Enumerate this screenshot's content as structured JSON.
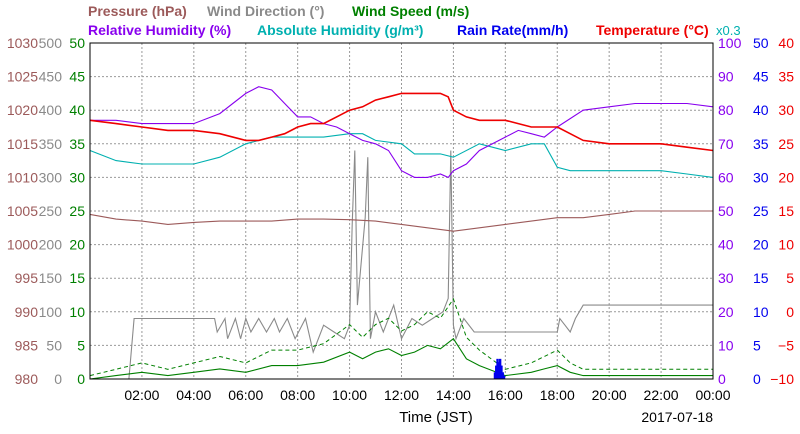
{
  "chart_data": {
    "type": "line",
    "date_label": "2017-07-18",
    "xlabel": "Time (JST)",
    "x_ticks": [
      "02:00",
      "04:00",
      "06:00",
      "08:00",
      "10:00",
      "12:00",
      "14:00",
      "16:00",
      "18:00",
      "20:00",
      "22:00",
      "00:00"
    ],
    "xlim": [
      0,
      24
    ],
    "grid": true,
    "legend": {
      "row1": [
        {
          "name": "Pressure (hPa)",
          "color": "#9c5a5a"
        },
        {
          "name": "Wind Direction (°)",
          "color": "#8a8a8a"
        },
        {
          "name": "Wind Speed (m/s)",
          "color": "#008000"
        }
      ],
      "row2": [
        {
          "name": "Relative Humidity (%)",
          "color": "#8800ee"
        },
        {
          "name": "Absolute Humidity (g/m³)",
          "color": "#00b0b0"
        },
        {
          "name": "Rain Rate(mm/h)",
          "color": "#0000ee"
        },
        {
          "name": "Temperature (°C)",
          "color": "#ee0000"
        }
      ],
      "note": "x0.3",
      "note_color": "#00b0b0"
    },
    "axes": {
      "pressure": {
        "color": "#9c5a5a",
        "ticks": [
          "1030",
          "1025",
          "1020",
          "1015",
          "1010",
          "1005",
          "1000",
          "995",
          "990",
          "985",
          "980"
        ]
      },
      "wind_direction": {
        "color": "#8a8a8a",
        "ticks": [
          "500",
          "450",
          "400",
          "350",
          "300",
          "250",
          "200",
          "150",
          "100",
          "50",
          "0"
        ]
      },
      "wind_speed": {
        "color": "#008000",
        "ticks": [
          "50",
          "45",
          "40",
          "35",
          "30",
          "25",
          "20",
          "15",
          "10",
          "5",
          "0"
        ]
      },
      "relative_humidity": {
        "color": "#8800ee",
        "ticks": [
          "100",
          "90",
          "80",
          "70",
          "60",
          "50",
          "40",
          "30",
          "20",
          "10",
          "0"
        ]
      },
      "rain_rate": {
        "color": "#0000ee",
        "ticks": [
          "50",
          "45",
          "40",
          "35",
          "30",
          "25",
          "20",
          "15",
          "10",
          "5",
          "0"
        ]
      },
      "temperature": {
        "color": "#ee0000",
        "ticks": [
          "40",
          "35",
          "30",
          "25",
          "20",
          "15",
          "10",
          "5",
          "0",
          "−5",
          "−10"
        ]
      }
    },
    "series": [
      {
        "name": "Temperature (°C)",
        "color": "#ee0000",
        "scale": "temperature",
        "ylim": [
          -10,
          40
        ],
        "x": [
          0,
          1,
          2,
          3,
          4,
          5,
          6,
          6.5,
          7,
          7.5,
          8,
          8.5,
          9,
          9.5,
          10,
          10.5,
          11,
          11.5,
          12,
          12.5,
          13,
          13.5,
          13.8,
          14,
          14.5,
          15,
          16,
          16.5,
          17,
          18,
          18.5,
          19,
          20,
          21,
          22,
          23,
          24
        ],
        "values": [
          28.5,
          28,
          27.5,
          27,
          27,
          26.5,
          25.5,
          25.5,
          26,
          26.5,
          27.5,
          28,
          28,
          29,
          30,
          30.5,
          31.5,
          32,
          32.5,
          32.5,
          32.5,
          32.5,
          32,
          30,
          29,
          28.5,
          28.5,
          28,
          27.5,
          27.5,
          26.5,
          25.5,
          25,
          25,
          25,
          24.5,
          24
        ]
      },
      {
        "name": "Relative Humidity (%)",
        "color": "#8800ee",
        "scale": "relative_humidity",
        "ylim": [
          0,
          100
        ],
        "x": [
          0,
          1,
          2,
          3,
          4,
          5,
          6,
          6.5,
          7,
          7.5,
          8,
          8.5,
          9,
          9.5,
          10,
          10.5,
          11,
          11.5,
          12,
          12.5,
          13,
          13.5,
          13.8,
          14,
          14.5,
          15,
          16,
          16.5,
          17,
          17.5,
          18,
          19,
          20,
          21,
          22,
          23,
          24
        ],
        "values": [
          77,
          77,
          76,
          76,
          76,
          79,
          85,
          87,
          86,
          82,
          78,
          78,
          76,
          75,
          73,
          71,
          70,
          68,
          62,
          60,
          60,
          61,
          60,
          62,
          64,
          68,
          72,
          74,
          73,
          72,
          75,
          80,
          81,
          82,
          82,
          82,
          81
        ]
      },
      {
        "name": "Absolute Humidity (g/m³)",
        "color": "#00b0b0",
        "scale": "relative_humidity",
        "ylim": [
          0,
          100
        ],
        "x": [
          0,
          1,
          2,
          3,
          4,
          5,
          6,
          7,
          8,
          9,
          10,
          10.5,
          11,
          12,
          12.5,
          13,
          13.5,
          14,
          15,
          15.5,
          16,
          17,
          17.5,
          18,
          18.5,
          19,
          20,
          21,
          22,
          23,
          24
        ],
        "values": [
          68,
          65,
          64,
          64,
          64,
          66,
          70,
          72,
          72,
          72,
          73,
          73,
          71,
          70,
          67,
          67,
          67,
          66,
          70,
          69,
          68,
          70,
          70,
          63,
          62,
          62,
          62,
          62,
          62,
          61,
          60
        ]
      },
      {
        "name": "Pressure (hPa)",
        "color": "#9c5a5a",
        "scale": "pressure",
        "ylim": [
          980,
          1030
        ],
        "x": [
          0,
          1,
          2,
          3,
          4,
          5,
          6,
          7,
          8,
          9,
          10,
          11,
          12,
          13,
          14,
          15,
          16,
          17,
          18,
          19,
          20,
          21,
          22,
          23,
          24
        ],
        "values": [
          1004.5,
          1003.8,
          1003.5,
          1003,
          1003.3,
          1003.5,
          1003.5,
          1003.5,
          1003.8,
          1003.8,
          1003.7,
          1003.5,
          1003,
          1002.5,
          1002,
          1002.5,
          1003,
          1003.5,
          1004,
          1004,
          1004.5,
          1005,
          1005,
          1005,
          1005
        ]
      },
      {
        "name": "Wind Direction (°)",
        "color": "#8a8a8a",
        "scale": "wind_direction",
        "ylim": [
          0,
          500
        ],
        "x": [
          0,
          0.3,
          1.5,
          1.7,
          4.8,
          4.9,
          5.2,
          5.3,
          5.6,
          5.8,
          6,
          6.2,
          6.5,
          6.8,
          7.1,
          7.3,
          7.6,
          7.9,
          8.3,
          8.6,
          9,
          9.4,
          9.8,
          10,
          10.1,
          10.2,
          10.3,
          10.6,
          10.7,
          10.8,
          11,
          11.3,
          11.7,
          12,
          12.4,
          12.8,
          13.2,
          13.6,
          13.8,
          13.9,
          14,
          14.1,
          14.4,
          14.8,
          15,
          16,
          17,
          17.5,
          18,
          18.1,
          18.3,
          18.5,
          18.7,
          19,
          20,
          22,
          24
        ],
        "values": [
          0,
          0,
          0,
          90,
          90,
          70,
          90,
          60,
          90,
          60,
          90,
          70,
          90,
          70,
          90,
          70,
          90,
          60,
          90,
          40,
          80,
          70,
          60,
          80,
          230,
          340,
          110,
          240,
          330,
          60,
          100,
          70,
          110,
          60,
          90,
          80,
          90,
          100,
          120,
          340,
          80,
          60,
          90,
          70,
          70,
          70,
          70,
          70,
          70,
          90,
          80,
          70,
          90,
          110,
          110,
          110,
          110
        ]
      },
      {
        "name": "Wind Speed (m/s)",
        "color": "#008000",
        "scale": "wind_speed",
        "ylim": [
          0,
          50
        ],
        "x": [
          0,
          1,
          2,
          3,
          4,
          5,
          6,
          7,
          8,
          9,
          10,
          10.5,
          11,
          11.5,
          12,
          12.5,
          13,
          13.5,
          14,
          14.5,
          15,
          16,
          17,
          17.5,
          18,
          18.5,
          19,
          20,
          21,
          22,
          23,
          24
        ],
        "values": [
          0,
          0.5,
          1,
          0.5,
          1,
          1.5,
          1,
          2,
          2,
          2.5,
          4,
          3,
          4,
          4.5,
          3.5,
          4,
          5,
          4.5,
          6,
          3,
          2,
          0.5,
          1,
          1.5,
          2,
          1,
          0.5,
          0.5,
          0.5,
          0.5,
          0.5,
          0.5
        ]
      },
      {
        "name": "Rain Rate(mm/h)",
        "color": "#0000ee",
        "scale": "rain_rate",
        "ylim": [
          0,
          50
        ],
        "x": [
          15.6,
          15.65,
          15.7,
          15.75,
          15.8,
          15.85,
          15.9,
          15.95
        ],
        "values": [
          1,
          2,
          3,
          2.5,
          3,
          2,
          1,
          0.5
        ]
      }
    ]
  }
}
